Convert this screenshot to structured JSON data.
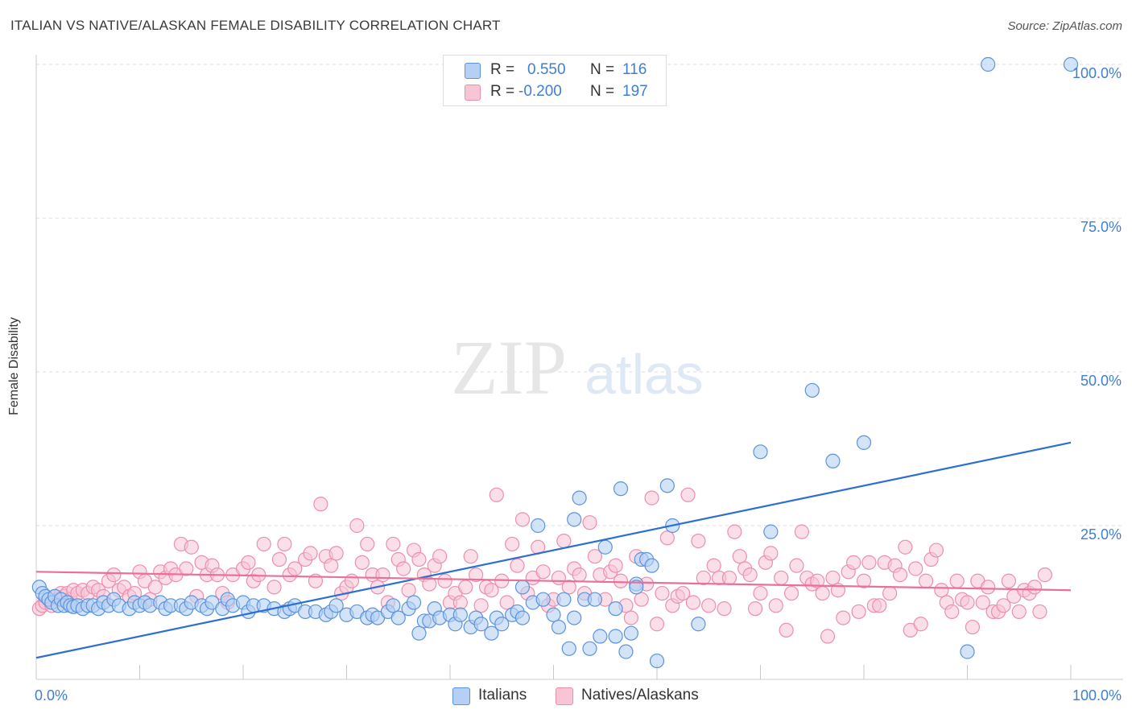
{
  "title": "ITALIAN VS NATIVE/ALASKAN FEMALE DISABILITY CORRELATION CHART",
  "source": "Source: ZipAtlas.com",
  "watermark": {
    "zip": "ZIP",
    "atlas": "atlas"
  },
  "colors": {
    "blue_fill": "#b5d0f4",
    "blue_stroke": "#5b93dd",
    "blue_line": "#2d6fd1",
    "pink_fill": "#f8c5d5",
    "pink_stroke": "#ec8fac",
    "pink_line": "#e8709a",
    "axis_text": "#3f7ed6",
    "grid": "#dddddd"
  },
  "legend": {
    "italians": {
      "r_label": "R =",
      "r_value": "0.550",
      "n_label": "N =",
      "n_value": "116"
    },
    "natives": {
      "r_label": "R =",
      "r_value": "-0.200",
      "n_label": "N =",
      "n_value": "197"
    }
  },
  "bottom_legend": {
    "italians": "Italians",
    "natives": "Natives/Alaskans"
  },
  "chart_data": {
    "type": "scatter",
    "title": "ITALIAN VS NATIVE/ALASKAN FEMALE DISABILITY CORRELATION CHART",
    "xlabel": "",
    "ylabel": "Female Disability",
    "xlim": [
      0,
      100
    ],
    "ylim": [
      0,
      100
    ],
    "x_tick_labels": [
      "0.0%",
      "100.0%"
    ],
    "y_ticks": [
      25,
      50,
      75,
      100
    ],
    "y_tick_labels": [
      "25.0%",
      "50.0%",
      "75.0%",
      "100.0%"
    ],
    "series": [
      {
        "name": "Italians",
        "trend": {
          "x0": 0,
          "y0": 3.5,
          "x1": 100,
          "y1": 38.5
        },
        "points": [
          [
            0.3,
            15
          ],
          [
            0.6,
            14
          ],
          [
            0.9,
            13.5
          ],
          [
            1.2,
            13
          ],
          [
            1.5,
            12.5
          ],
          [
            1.8,
            13.5
          ],
          [
            2.1,
            12
          ],
          [
            2.4,
            13
          ],
          [
            2.7,
            12
          ],
          [
            3,
            12.5
          ],
          [
            3.3,
            12
          ],
          [
            3.6,
            11.8
          ],
          [
            4,
            12
          ],
          [
            4.5,
            11.5
          ],
          [
            5,
            12
          ],
          [
            5.5,
            12
          ],
          [
            6,
            11.5
          ],
          [
            6.5,
            12.5
          ],
          [
            7,
            12
          ],
          [
            7.5,
            13
          ],
          [
            8,
            12
          ],
          [
            9,
            11.5
          ],
          [
            9.5,
            12.5
          ],
          [
            10,
            12
          ],
          [
            10.5,
            12.5
          ],
          [
            11,
            12
          ],
          [
            12,
            12.5
          ],
          [
            12.5,
            11.5
          ],
          [
            13,
            12
          ],
          [
            14,
            12
          ],
          [
            14.5,
            11.5
          ],
          [
            15,
            12.5
          ],
          [
            16,
            12
          ],
          [
            16.5,
            11.5
          ],
          [
            17,
            12.5
          ],
          [
            18,
            11.5
          ],
          [
            18.5,
            13
          ],
          [
            19,
            12
          ],
          [
            20,
            12.5
          ],
          [
            20.5,
            11
          ],
          [
            21,
            12
          ],
          [
            22,
            12
          ],
          [
            23,
            11.5
          ],
          [
            24,
            11
          ],
          [
            24.5,
            11.5
          ],
          [
            25,
            12
          ],
          [
            26,
            11
          ],
          [
            27,
            11
          ],
          [
            28,
            10.5
          ],
          [
            28.5,
            11
          ],
          [
            29,
            12
          ],
          [
            30,
            10.5
          ],
          [
            31,
            11
          ],
          [
            32,
            10
          ],
          [
            32.5,
            10.5
          ],
          [
            33,
            10
          ],
          [
            34,
            11
          ],
          [
            34.5,
            12
          ],
          [
            35,
            10
          ],
          [
            36,
            11.5
          ],
          [
            36.5,
            12.5
          ],
          [
            37,
            7.5
          ],
          [
            37.5,
            9.5
          ],
          [
            38,
            9.5
          ],
          [
            38.5,
            11.5
          ],
          [
            39,
            10
          ],
          [
            40,
            10.5
          ],
          [
            40.5,
            9
          ],
          [
            41,
            10.5
          ],
          [
            42,
            8.5
          ],
          [
            42.5,
            10
          ],
          [
            43,
            9
          ],
          [
            44,
            7.5
          ],
          [
            44.5,
            10
          ],
          [
            45,
            9
          ],
          [
            46,
            10.5
          ],
          [
            46.5,
            11
          ],
          [
            47,
            15
          ],
          [
            48,
            12.5
          ],
          [
            48.5,
            25
          ],
          [
            49,
            13
          ],
          [
            50,
            10.5
          ],
          [
            50.5,
            8.5
          ],
          [
            51,
            13
          ],
          [
            51.5,
            5
          ],
          [
            52,
            26
          ],
          [
            52.5,
            29.5
          ],
          [
            53,
            13
          ],
          [
            53.5,
            5
          ],
          [
            54,
            13
          ],
          [
            54.5,
            7
          ],
          [
            55,
            21.5
          ],
          [
            56,
            11.5
          ],
          [
            56.5,
            31
          ],
          [
            57,
            4.5
          ],
          [
            57.5,
            7.5
          ],
          [
            58,
            15.5
          ],
          [
            58.5,
            19.5
          ],
          [
            59,
            19.5
          ],
          [
            59.5,
            18.5
          ],
          [
            60,
            3
          ],
          [
            61,
            31.5
          ],
          [
            61.5,
            25
          ],
          [
            64,
            9
          ],
          [
            70,
            37
          ],
          [
            71,
            24
          ],
          [
            75,
            47
          ],
          [
            77,
            35.5
          ],
          [
            80,
            38.5
          ],
          [
            90,
            4.5
          ],
          [
            92,
            100
          ],
          [
            100,
            100
          ],
          [
            56,
            7
          ],
          [
            58,
            15
          ],
          [
            47,
            10
          ],
          [
            52,
            10
          ]
        ]
      },
      {
        "name": "Natives/Alaskans",
        "trend": {
          "x0": 0,
          "y0": 17.5,
          "x1": 100,
          "y1": 14.5
        },
        "points": [
          [
            0.3,
            11.5
          ],
          [
            0.6,
            12
          ],
          [
            0.9,
            12.5
          ],
          [
            1.2,
            13
          ],
          [
            1.5,
            12
          ],
          [
            1.8,
            13.5
          ],
          [
            2.1,
            13
          ],
          [
            2.4,
            14
          ],
          [
            2.7,
            13.5
          ],
          [
            3,
            14
          ],
          [
            3.3,
            13
          ],
          [
            3.6,
            14.5
          ],
          [
            4,
            14
          ],
          [
            4.5,
            14.5
          ],
          [
            5,
            14
          ],
          [
            5.5,
            15
          ],
          [
            6,
            14.5
          ],
          [
            6.5,
            13.5
          ],
          [
            7,
            16
          ],
          [
            7.5,
            17
          ],
          [
            8,
            14.5
          ],
          [
            8.5,
            15
          ],
          [
            9,
            13.5
          ],
          [
            9.5,
            14
          ],
          [
            10,
            17.5
          ],
          [
            10.5,
            16
          ],
          [
            11,
            13
          ],
          [
            11.5,
            15
          ],
          [
            12,
            17.5
          ],
          [
            12.5,
            16.5
          ],
          [
            13,
            18
          ],
          [
            13.5,
            17
          ],
          [
            14,
            22
          ],
          [
            14.5,
            18
          ],
          [
            15,
            21.5
          ],
          [
            15.5,
            13.5
          ],
          [
            16,
            19
          ],
          [
            16.5,
            17
          ],
          [
            17,
            18.5
          ],
          [
            17.5,
            17
          ],
          [
            18,
            14
          ],
          [
            18.5,
            12.5
          ],
          [
            19,
            17
          ],
          [
            20,
            18
          ],
          [
            20.5,
            19
          ],
          [
            21,
            16
          ],
          [
            21.5,
            17
          ],
          [
            22,
            22
          ],
          [
            23,
            15
          ],
          [
            23.5,
            19.5
          ],
          [
            24,
            22
          ],
          [
            24.5,
            17
          ],
          [
            25,
            18
          ],
          [
            26,
            19.5
          ],
          [
            26.5,
            20.5
          ],
          [
            27,
            16
          ],
          [
            27.5,
            28.5
          ],
          [
            28,
            20
          ],
          [
            28.5,
            18.5
          ],
          [
            29,
            20.5
          ],
          [
            29.5,
            14
          ],
          [
            30,
            15
          ],
          [
            30.5,
            16
          ],
          [
            31,
            25
          ],
          [
            31.5,
            19
          ],
          [
            32,
            22
          ],
          [
            32.5,
            17
          ],
          [
            33,
            15
          ],
          [
            33.5,
            17
          ],
          [
            34,
            12.5
          ],
          [
            34.5,
            22
          ],
          [
            35,
            19.5
          ],
          [
            35.5,
            18
          ],
          [
            36,
            14.5
          ],
          [
            36.5,
            21
          ],
          [
            37,
            19.5
          ],
          [
            37.5,
            17
          ],
          [
            38,
            15.5
          ],
          [
            38.5,
            18.5
          ],
          [
            39,
            20
          ],
          [
            39.5,
            16
          ],
          [
            40,
            12.5
          ],
          [
            40.5,
            14
          ],
          [
            41,
            12.5
          ],
          [
            41.5,
            15
          ],
          [
            42,
            20
          ],
          [
            42.5,
            17
          ],
          [
            43,
            12
          ],
          [
            43.5,
            15
          ],
          [
            44,
            14.5
          ],
          [
            44.5,
            30
          ],
          [
            45,
            16
          ],
          [
            45.5,
            12.5
          ],
          [
            46,
            22
          ],
          [
            46.5,
            18.5
          ],
          [
            47,
            26
          ],
          [
            47.5,
            14
          ],
          [
            48,
            16.5
          ],
          [
            48.5,
            21.5
          ],
          [
            49,
            17.5
          ],
          [
            49.5,
            12
          ],
          [
            50,
            13
          ],
          [
            50.5,
            16.5
          ],
          [
            51,
            22.5
          ],
          [
            51.5,
            15
          ],
          [
            52,
            18
          ],
          [
            52.5,
            17
          ],
          [
            53,
            14
          ],
          [
            53.5,
            25.5
          ],
          [
            54,
            20
          ],
          [
            54.5,
            17
          ],
          [
            55,
            13
          ],
          [
            55.5,
            17.5
          ],
          [
            56,
            18.5
          ],
          [
            56.5,
            16
          ],
          [
            57,
            12
          ],
          [
            57.5,
            10
          ],
          [
            58,
            20
          ],
          [
            58.5,
            13
          ],
          [
            59,
            15.5
          ],
          [
            59.5,
            29.5
          ],
          [
            60,
            9
          ],
          [
            60.5,
            14
          ],
          [
            61,
            23
          ],
          [
            61.5,
            12
          ],
          [
            62,
            13.5
          ],
          [
            62.5,
            14
          ],
          [
            63,
            30
          ],
          [
            63.5,
            12.5
          ],
          [
            64,
            22.5
          ],
          [
            64.5,
            16.5
          ],
          [
            65,
            12
          ],
          [
            65.5,
            18.5
          ],
          [
            66,
            16.5
          ],
          [
            66.5,
            11.5
          ],
          [
            67,
            16.5
          ],
          [
            67.5,
            24
          ],
          [
            68,
            20
          ],
          [
            68.5,
            18
          ],
          [
            69,
            17
          ],
          [
            69.5,
            11.5
          ],
          [
            70,
            14
          ],
          [
            70.5,
            19
          ],
          [
            71,
            20.5
          ],
          [
            71.5,
            12
          ],
          [
            72,
            16.5
          ],
          [
            72.5,
            8
          ],
          [
            73,
            14
          ],
          [
            73.5,
            18.5
          ],
          [
            74,
            24
          ],
          [
            74.5,
            16.5
          ],
          [
            75,
            15.5
          ],
          [
            75.5,
            16
          ],
          [
            76,
            14
          ],
          [
            76.5,
            7
          ],
          [
            77,
            16.5
          ],
          [
            77.5,
            14.5
          ],
          [
            78,
            10
          ],
          [
            78.5,
            17.5
          ],
          [
            79,
            19
          ],
          [
            79.5,
            11
          ],
          [
            80,
            16
          ],
          [
            80.5,
            19
          ],
          [
            81,
            12
          ],
          [
            81.5,
            12
          ],
          [
            82,
            19
          ],
          [
            82.5,
            14
          ],
          [
            83,
            18.5
          ],
          [
            83.5,
            17
          ],
          [
            84,
            21.5
          ],
          [
            84.5,
            8
          ],
          [
            85,
            18
          ],
          [
            85.5,
            9
          ],
          [
            86,
            16
          ],
          [
            86.5,
            19.5
          ],
          [
            87,
            21
          ],
          [
            87.5,
            14.5
          ],
          [
            88,
            12.5
          ],
          [
            88.5,
            11
          ],
          [
            89,
            16
          ],
          [
            89.5,
            13
          ],
          [
            90,
            12.5
          ],
          [
            90.5,
            8.5
          ],
          [
            91,
            16
          ],
          [
            91.5,
            12.5
          ],
          [
            92,
            15
          ],
          [
            92.5,
            11
          ],
          [
            93,
            11
          ],
          [
            93.5,
            12
          ],
          [
            94,
            16
          ],
          [
            94.5,
            13.5
          ],
          [
            95,
            11
          ],
          [
            95.5,
            14.5
          ],
          [
            96,
            14
          ],
          [
            96.5,
            15
          ],
          [
            97,
            11
          ],
          [
            97.5,
            17
          ]
        ]
      }
    ]
  }
}
